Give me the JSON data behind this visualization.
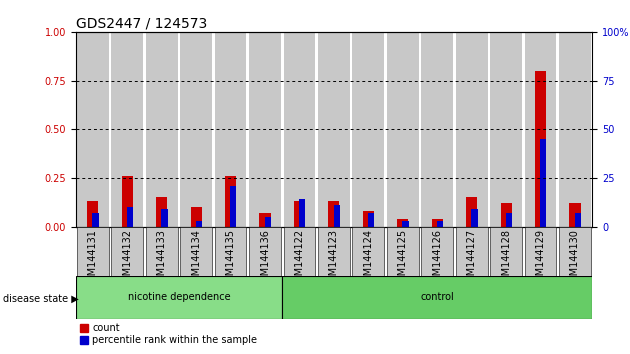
{
  "title": "GDS2447 / 124573",
  "samples": [
    "GSM144131",
    "GSM144132",
    "GSM144133",
    "GSM144134",
    "GSM144135",
    "GSM144136",
    "GSM144122",
    "GSM144123",
    "GSM144124",
    "GSM144125",
    "GSM144126",
    "GSM144127",
    "GSM144128",
    "GSM144129",
    "GSM144130"
  ],
  "red_values": [
    0.13,
    0.26,
    0.15,
    0.1,
    0.26,
    0.07,
    0.13,
    0.13,
    0.08,
    0.04,
    0.04,
    0.15,
    0.12,
    0.8,
    0.12
  ],
  "blue_values": [
    0.07,
    0.1,
    0.09,
    0.03,
    0.21,
    0.05,
    0.14,
    0.11,
    0.07,
    0.03,
    0.03,
    0.09,
    0.07,
    0.45,
    0.07
  ],
  "group1_label": "nicotine dependence",
  "group2_label": "control",
  "group1_count": 6,
  "group2_count": 9,
  "disease_state_label": "disease state",
  "legend_count": "count",
  "legend_pct": "percentile rank within the sample",
  "red_color": "#cc0000",
  "blue_color": "#0000cc",
  "group1_bg": "#88dd88",
  "group2_bg": "#66cc66",
  "bar_bg": "#c8c8c8",
  "left_yticks": [
    0,
    0.25,
    0.5,
    0.75,
    1.0
  ],
  "right_ytick_vals": [
    0,
    25,
    50,
    75,
    100
  ],
  "right_ytick_labels": [
    "0",
    "25",
    "50",
    "75",
    "100%"
  ],
  "ylim": [
    0,
    1.0
  ],
  "dotted_lines": [
    0.25,
    0.5,
    0.75
  ],
  "title_fontsize": 10,
  "tick_fontsize": 7,
  "label_fontsize": 8,
  "bar_width": 0.5,
  "blue_bar_width": 0.18
}
